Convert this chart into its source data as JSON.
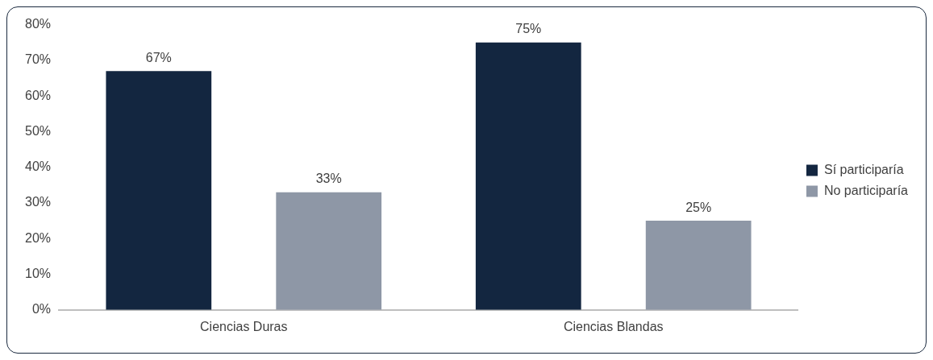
{
  "chart_data": {
    "type": "bar",
    "categories": [
      "Ciencias Duras",
      "Ciencias Blandas"
    ],
    "series": [
      {
        "name": "Sí participaría",
        "color": "#132640",
        "values": [
          67,
          75
        ]
      },
      {
        "name": "No participaría",
        "color": "#8e97a6",
        "values": [
          33,
          25
        ]
      }
    ],
    "ylim": [
      0,
      80
    ],
    "yticks": [
      {
        "value": 0,
        "label": "0%"
      },
      {
        "value": 10,
        "label": "10%"
      },
      {
        "value": 20,
        "label": "20%"
      },
      {
        "value": 30,
        "label": "30%"
      },
      {
        "value": 40,
        "label": "40%"
      },
      {
        "value": 50,
        "label": "50%"
      },
      {
        "value": 60,
        "label": "60%"
      },
      {
        "value": 70,
        "label": "70%"
      },
      {
        "value": 80,
        "label": "80%"
      }
    ],
    "value_labels": [
      [
        "67%",
        "75%"
      ],
      [
        "33%",
        "25%"
      ]
    ],
    "grid": false,
    "legend": "right"
  }
}
